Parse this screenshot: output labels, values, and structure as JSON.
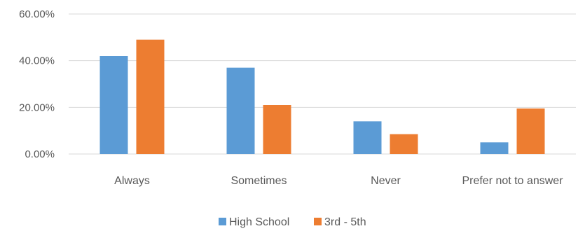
{
  "chart_data": {
    "type": "bar",
    "title": "",
    "xlabel": "",
    "ylabel": "",
    "categories": [
      "Always",
      "Sometimes",
      "Never",
      "Prefer not to answer"
    ],
    "series": [
      {
        "name": "High School",
        "values": [
          42,
          37,
          14,
          5
        ]
      },
      {
        "name": "3rd - 5th",
        "values": [
          49,
          21,
          8.5,
          19.5
        ]
      }
    ],
    "ylim": [
      0,
      60
    ],
    "yticks": [
      0,
      20,
      40,
      60
    ],
    "ytick_labels": [
      "0.00%",
      "20.00%",
      "40.00%",
      "60.00%"
    ],
    "grid": true,
    "legend_position": "bottom"
  },
  "colors": {
    "series": [
      "#5b9bd5",
      "#ed7d31"
    ],
    "grid": "#d9d9d9",
    "text": "#595959"
  }
}
